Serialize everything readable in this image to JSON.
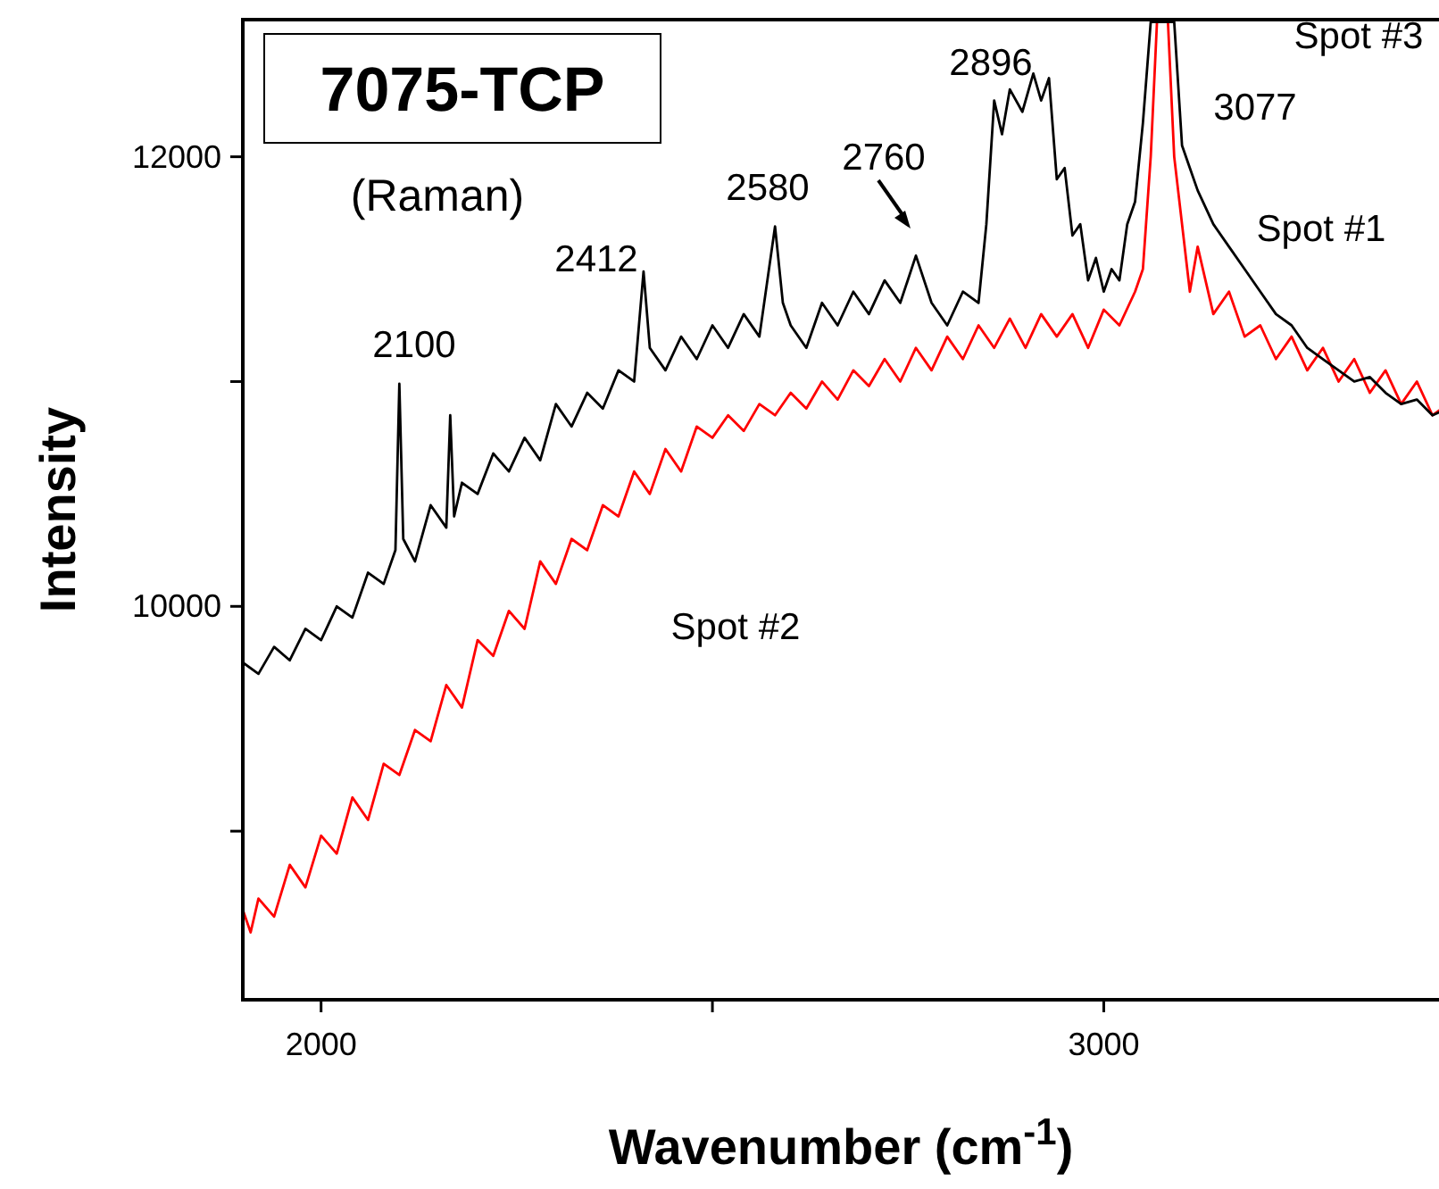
{
  "chart_data": {
    "type": "line",
    "title": "7075-TCP",
    "subtitle": "(Raman)",
    "xlabel": "Wavenumber (cm$^{-1}$)",
    "ylabel": "Intensity",
    "xlim": [
      1900,
      3442
    ],
    "ylim": [
      8250,
      12610
    ],
    "xticks": [
      2000,
      {
        "value": 2500,
        "label": null
      },
      3000
    ],
    "yticks": [
      {
        "value": 9000,
        "label": null
      },
      10000,
      {
        "value": 11000,
        "label": null
      },
      12000
    ],
    "grid": false,
    "marker": "none",
    "line_style": "solid",
    "annotations": [
      "2100",
      "2412",
      "2580",
      "2760",
      "2896",
      "3077",
      "Spot #3",
      "Spot #1",
      "Spot #2"
    ],
    "series": [
      {
        "color": "#ff0000",
        "x": [
          1900,
          1910,
          1920,
          1940,
          1960,
          1980,
          2000,
          2020,
          2040,
          2060,
          2080,
          2100,
          2120,
          2140,
          2160,
          2180,
          2200,
          2220,
          2240,
          2260,
          2280,
          2300,
          2320,
          2340,
          2360,
          2380,
          2400,
          2420,
          2440,
          2460,
          2480,
          2500,
          2520,
          2540,
          2560,
          2580,
          2600,
          2620,
          2640,
          2660,
          2680,
          2700,
          2720,
          2740,
          2760,
          2780,
          2800,
          2820,
          2840,
          2860,
          2880,
          2900,
          2920,
          2940,
          2960,
          2980,
          3000,
          3020,
          3040,
          3050,
          3060,
          3068,
          3082,
          3090,
          3100,
          3110,
          3120,
          3140,
          3160,
          3180,
          3200,
          3220,
          3240,
          3260,
          3280,
          3300,
          3320,
          3340,
          3360,
          3380,
          3400,
          3420,
          3440
        ],
        "values": [
          8650,
          8550,
          8700,
          8620,
          8850,
          8750,
          8980,
          8900,
          9150,
          9050,
          9300,
          9250,
          9450,
          9400,
          9650,
          9550,
          9850,
          9780,
          9980,
          9900,
          10200,
          10100,
          10300,
          10250,
          10450,
          10400,
          10600,
          10500,
          10700,
          10600,
          10800,
          10750,
          10850,
          10780,
          10900,
          10850,
          10950,
          10880,
          11000,
          10920,
          11050,
          10980,
          11100,
          11000,
          11150,
          11050,
          11200,
          11100,
          11250,
          11150,
          11280,
          11150,
          11300,
          11200,
          11300,
          11150,
          11320,
          11250,
          11400,
          11500,
          12000,
          12600,
          12600,
          12000,
          11700,
          11400,
          11600,
          11300,
          11400,
          11200,
          11250,
          11100,
          11200,
          11050,
          11150,
          11000,
          11100,
          10950,
          11050,
          10900,
          11000,
          10850,
          10900
        ]
      },
      {
        "color": "#000000",
        "x": [
          1900,
          1920,
          1940,
          1960,
          1980,
          2000,
          2020,
          2040,
          2060,
          2080,
          2095,
          2100,
          2105,
          2120,
          2140,
          2160,
          2165,
          2170,
          2180,
          2200,
          2220,
          2240,
          2260,
          2280,
          2300,
          2320,
          2340,
          2360,
          2380,
          2400,
          2412,
          2420,
          2440,
          2460,
          2480,
          2500,
          2520,
          2540,
          2560,
          2580,
          2590,
          2600,
          2620,
          2640,
          2660,
          2680,
          2700,
          2720,
          2740,
          2760,
          2780,
          2800,
          2820,
          2840,
          2850,
          2860,
          2870,
          2880,
          2896,
          2910,
          2920,
          2930,
          2940,
          2950,
          2960,
          2970,
          2980,
          2990,
          3000,
          3010,
          3020,
          3030,
          3040,
          3050,
          3060,
          3075,
          3090,
          3100,
          3110,
          3120,
          3140,
          3160,
          3180,
          3200,
          3220,
          3240,
          3260,
          3280,
          3300,
          3320,
          3340,
          3360,
          3380,
          3400,
          3420,
          3440
        ],
        "values": [
          9750,
          9700,
          9820,
          9760,
          9900,
          9850,
          10000,
          9950,
          10150,
          10100,
          10250,
          10990,
          10300,
          10200,
          10450,
          10350,
          10850,
          10400,
          10550,
          10500,
          10680,
          10600,
          10750,
          10650,
          10900,
          10800,
          10950,
          10880,
          11050,
          11000,
          11490,
          11150,
          11050,
          11200,
          11100,
          11250,
          11150,
          11300,
          11200,
          11690,
          11350,
          11250,
          11150,
          11350,
          11250,
          11400,
          11300,
          11450,
          11350,
          11560,
          11350,
          11250,
          11400,
          11350,
          11700,
          12250,
          12100,
          12300,
          12200,
          12370,
          12250,
          12350,
          11900,
          11950,
          11650,
          11700,
          11450,
          11550,
          11400,
          11500,
          11450,
          11700,
          11800,
          12150,
          12600,
          12600,
          12600,
          12050,
          11950,
          11850,
          11700,
          11600,
          11500,
          11400,
          11300,
          11250,
          11150,
          11100,
          11050,
          11000,
          11020,
          10950,
          10900,
          10920,
          10850,
          10880
        ]
      }
    ]
  }
}
